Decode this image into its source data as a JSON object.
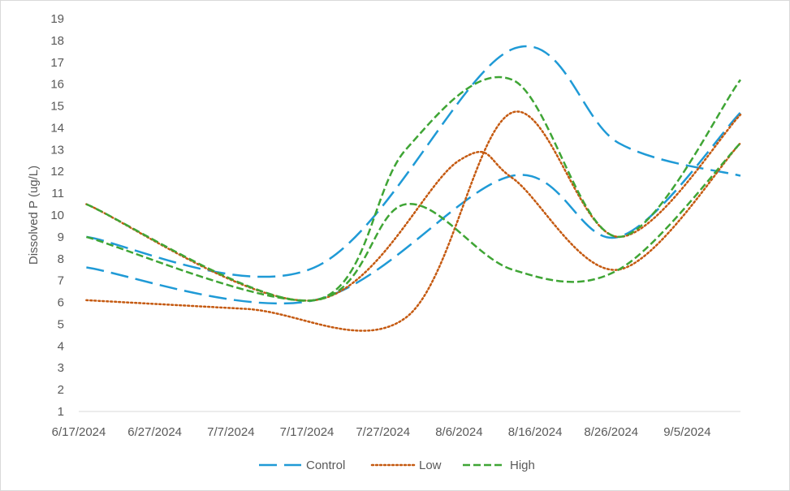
{
  "chart_data": {
    "type": "line",
    "title": "",
    "xlabel": "",
    "ylabel": "Dissolved P (ug/L)",
    "ylim": [
      1,
      19
    ],
    "yticks": [
      "1",
      "2",
      "3",
      "4",
      "5",
      "6",
      "7",
      "8",
      "9",
      "10",
      "11",
      "12",
      "13",
      "14",
      "15",
      "16",
      "17",
      "18",
      "19"
    ],
    "xlim": [
      "6/17/2024",
      "9/12/2024"
    ],
    "xticks": [
      "6/17/2024",
      "6/27/2024",
      "7/7/2024",
      "7/17/2024",
      "7/27/2024",
      "8/6/2024",
      "8/16/2024",
      "8/26/2024",
      "9/5/2024"
    ],
    "grid": false,
    "smooth": true,
    "legend_position": "bottom",
    "series": [
      {
        "name": "Control",
        "color": "#1f9ad6",
        "dash": "long-dash",
        "x": [
          "6/18/2024",
          "7/18/2024",
          "8/13/2024",
          "8/27/2024",
          "9/12/2024"
        ],
        "y": [
          9.0,
          7.6,
          17.6,
          13.3,
          11.8
        ]
      },
      {
        "name": "Control",
        "color": "#1f9ad6",
        "dash": "long-dash",
        "x": [
          "6/18/2024",
          "7/18/2024",
          "8/13/2024",
          "8/27/2024",
          "9/12/2024"
        ],
        "y": [
          7.6,
          6.1,
          11.8,
          9.0,
          14.7
        ]
      },
      {
        "name": "Low",
        "color": "#c55a11",
        "dash": "dot",
        "x": [
          "6/18/2024",
          "7/9/2024",
          "7/30/2024",
          "8/13/2024",
          "8/27/2024",
          "9/12/2024"
        ],
        "y": [
          6.1,
          5.7,
          5.3,
          14.7,
          9.0,
          14.6
        ]
      },
      {
        "name": "Low",
        "color": "#c55a11",
        "dash": "dot",
        "x": [
          "6/18/2024",
          "7/18/2024",
          "8/6/2024",
          "8/13/2024",
          "8/27/2024",
          "9/12/2024"
        ],
        "y": [
          10.5,
          6.1,
          12.5,
          11.7,
          7.5,
          13.3
        ]
      },
      {
        "name": "High",
        "color": "#3fa535",
        "dash": "dash",
        "x": [
          "6/18/2024",
          "7/18/2024",
          "7/30/2024",
          "8/13/2024",
          "8/27/2024",
          "9/12/2024"
        ],
        "y": [
          10.5,
          6.1,
          13.0,
          16.2,
          9.0,
          16.2
        ]
      },
      {
        "name": "High",
        "color": "#3fa535",
        "dash": "dash",
        "x": [
          "6/18/2024",
          "7/18/2024",
          "7/30/2024",
          "8/13/2024",
          "8/27/2024",
          "9/12/2024"
        ],
        "y": [
          9.0,
          6.1,
          10.5,
          7.5,
          7.5,
          13.3
        ]
      }
    ],
    "legend": [
      {
        "label": "Control",
        "color": "#1f9ad6",
        "dash": "long-dash"
      },
      {
        "label": "Low",
        "color": "#c55a11",
        "dash": "dot"
      },
      {
        "label": "High",
        "color": "#3fa535",
        "dash": "dash"
      }
    ]
  }
}
